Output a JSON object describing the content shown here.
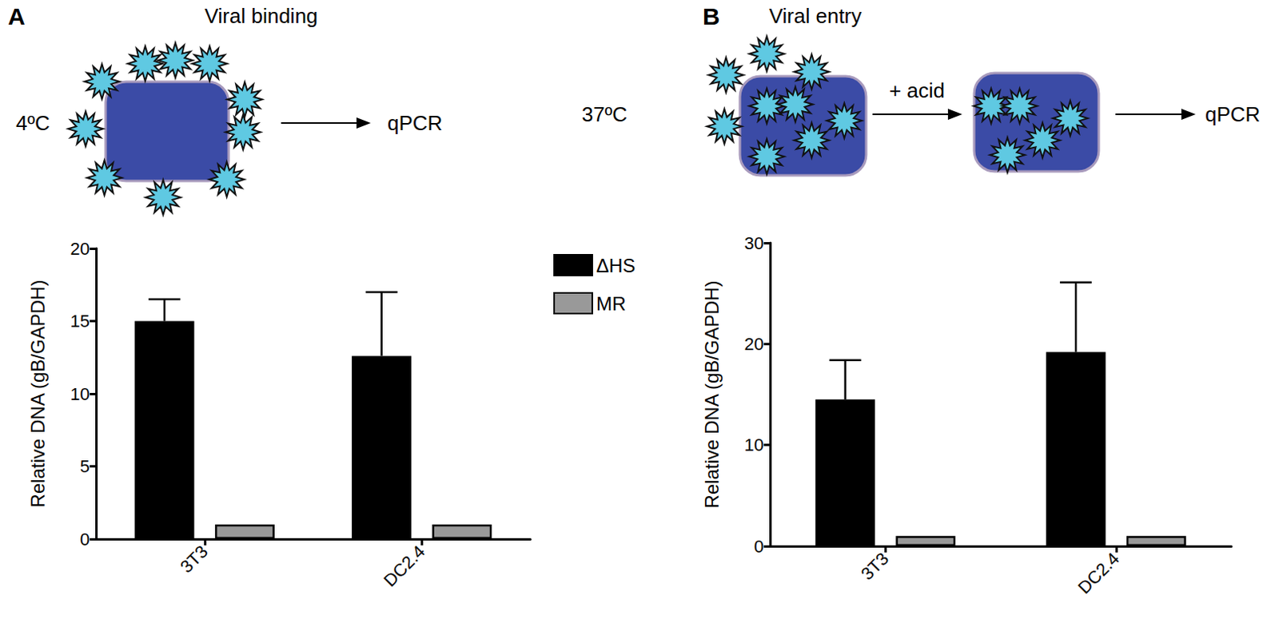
{
  "chart_data": [
    {
      "panel": "A",
      "title": "Viral binding",
      "type": "bar",
      "annotations": [
        "4ºC",
        "qPCR"
      ],
      "categories": [
        "3T3",
        "DC2.4"
      ],
      "ylabel": "Relative DNA (gB/GAPDH)",
      "ylim": [
        0,
        20
      ],
      "yticks": [
        0,
        5,
        10,
        15,
        20
      ],
      "grid": false,
      "legend": "right",
      "series": [
        {
          "name": "ΔHS",
          "color": "#000000",
          "values": [
            15.0,
            12.6
          ],
          "errors": [
            1.5,
            4.4
          ]
        },
        {
          "name": "MR",
          "color": "#999999",
          "values": [
            1,
            1
          ],
          "errors": [
            null,
            null
          ]
        }
      ]
    },
    {
      "panel": "B",
      "title": "Viral entry",
      "type": "bar",
      "annotations": [
        "37ºC",
        "+ acid",
        "qPCR"
      ],
      "categories": [
        "3T3",
        "DC2.4"
      ],
      "ylabel": "Relative DNA (gB/GAPDH)",
      "ylim": [
        0,
        30
      ],
      "yticks": [
        0,
        10,
        20,
        30
      ],
      "grid": false,
      "series": [
        {
          "name": "ΔHS",
          "color": "#000000",
          "values": [
            14.5,
            19.2
          ],
          "errors": [
            3.9,
            6.9
          ]
        },
        {
          "name": "MR",
          "color": "#999999",
          "values": [
            1,
            1
          ],
          "errors": [
            null,
            null
          ]
        }
      ]
    }
  ]
}
